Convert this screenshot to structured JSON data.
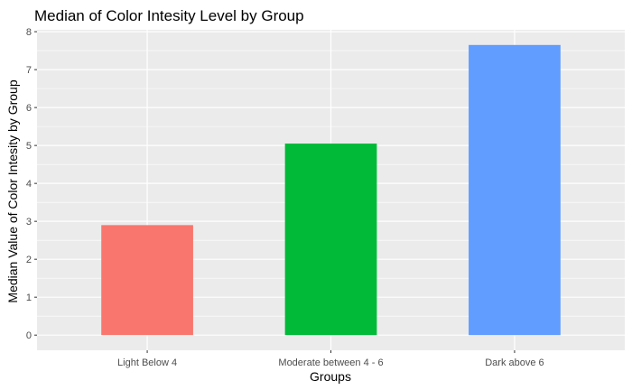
{
  "chart_data": {
    "type": "bar",
    "title": "Median of Color Intesity Level by Group",
    "xlabel": "Groups",
    "ylabel": "Median Value of Color Intesity by Group",
    "categories": [
      "Light Below 4",
      "Moderate between 4 - 6",
      "Dark above 6"
    ],
    "values": [
      2.9,
      5.05,
      7.65
    ],
    "colors": [
      "#F8766D",
      "#00BA38",
      "#619CFF"
    ],
    "ylim": [
      -0.4,
      8.05
    ],
    "yticks": [
      0,
      1,
      2,
      3,
      4,
      5,
      6,
      7,
      8
    ],
    "grid": true,
    "legend": "none",
    "panel_background": "#EBEBEB",
    "gridline_color": "#FFFFFF"
  }
}
